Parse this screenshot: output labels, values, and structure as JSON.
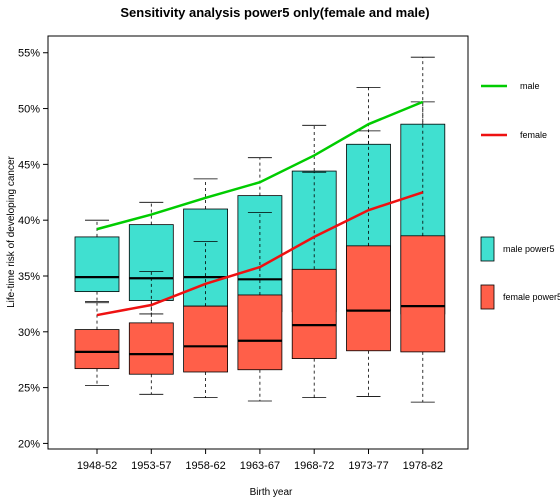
{
  "chart_data": {
    "type": "box",
    "title": "Sensitivity analysis power5 only(female and male)",
    "xlabel": "Birth year",
    "ylabel": "Life-time risk of developing cancer",
    "categories": [
      "1948-52",
      "1953-57",
      "1958-62",
      "1963-67",
      "1968-72",
      "1973-77",
      "1978-82"
    ],
    "yticks": [
      "20%",
      "25%",
      "30%",
      "35%",
      "40%",
      "45%",
      "50%",
      "55%"
    ],
    "ylim": [
      19.5,
      56.5
    ],
    "legend_position": "right",
    "box_series": [
      {
        "name": "male power5",
        "color": "#40e0d0",
        "boxes": [
          {
            "min": 32.7,
            "q1": 33.6,
            "median": 34.9,
            "q3": 38.5,
            "max": 40.0
          },
          {
            "min": 31.6,
            "q1": 32.8,
            "median": 34.8,
            "q3": 39.6,
            "max": 41.6
          },
          {
            "min": 31.5,
            "q1": 32.3,
            "median": 34.9,
            "q3": 41.0,
            "max": 43.7
          },
          {
            "min": 31.3,
            "q1": 31.8,
            "median": 34.7,
            "q3": 42.2,
            "max": 45.6
          },
          {
            "min": 31.2,
            "q1": 31.8,
            "median": 35.2,
            "q3": 44.4,
            "max": 48.5
          },
          {
            "min": 31.3,
            "q1": 31.9,
            "median": 36.1,
            "q3": 46.8,
            "max": 51.9
          },
          {
            "min": 31.2,
            "q1": 31.6,
            "median": 36.3,
            "q3": 48.6,
            "max": 54.6
          }
        ]
      },
      {
        "name": "female power5",
        "color": "#ff5f49",
        "boxes": [
          {
            "min": 25.2,
            "q1": 26.7,
            "median": 28.2,
            "q3": 30.2,
            "max": 32.6
          },
          {
            "min": 24.4,
            "q1": 26.2,
            "median": 28.0,
            "q3": 30.8,
            "max": 35.4
          },
          {
            "min": 24.1,
            "q1": 26.4,
            "median": 28.7,
            "q3": 32.3,
            "max": 38.1
          },
          {
            "min": 23.8,
            "q1": 26.6,
            "median": 29.2,
            "q3": 33.3,
            "max": 40.7
          },
          {
            "min": 24.1,
            "q1": 27.6,
            "median": 30.6,
            "q3": 35.6,
            "max": 44.3
          },
          {
            "min": 24.2,
            "q1": 28.3,
            "median": 31.9,
            "q3": 37.7,
            "max": 48.0
          },
          {
            "min": 23.7,
            "q1": 28.2,
            "median": 32.3,
            "q3": 38.6,
            "max": 50.6
          }
        ]
      }
    ],
    "line_series": [
      {
        "name": "male",
        "color": "#00cc00",
        "values": [
          39.2,
          40.5,
          42.0,
          43.4,
          45.8,
          48.6,
          50.6
        ]
      },
      {
        "name": "female",
        "color": "#ee1111",
        "values": [
          31.5,
          32.4,
          34.3,
          35.8,
          38.5,
          40.9,
          42.5
        ]
      }
    ]
  }
}
